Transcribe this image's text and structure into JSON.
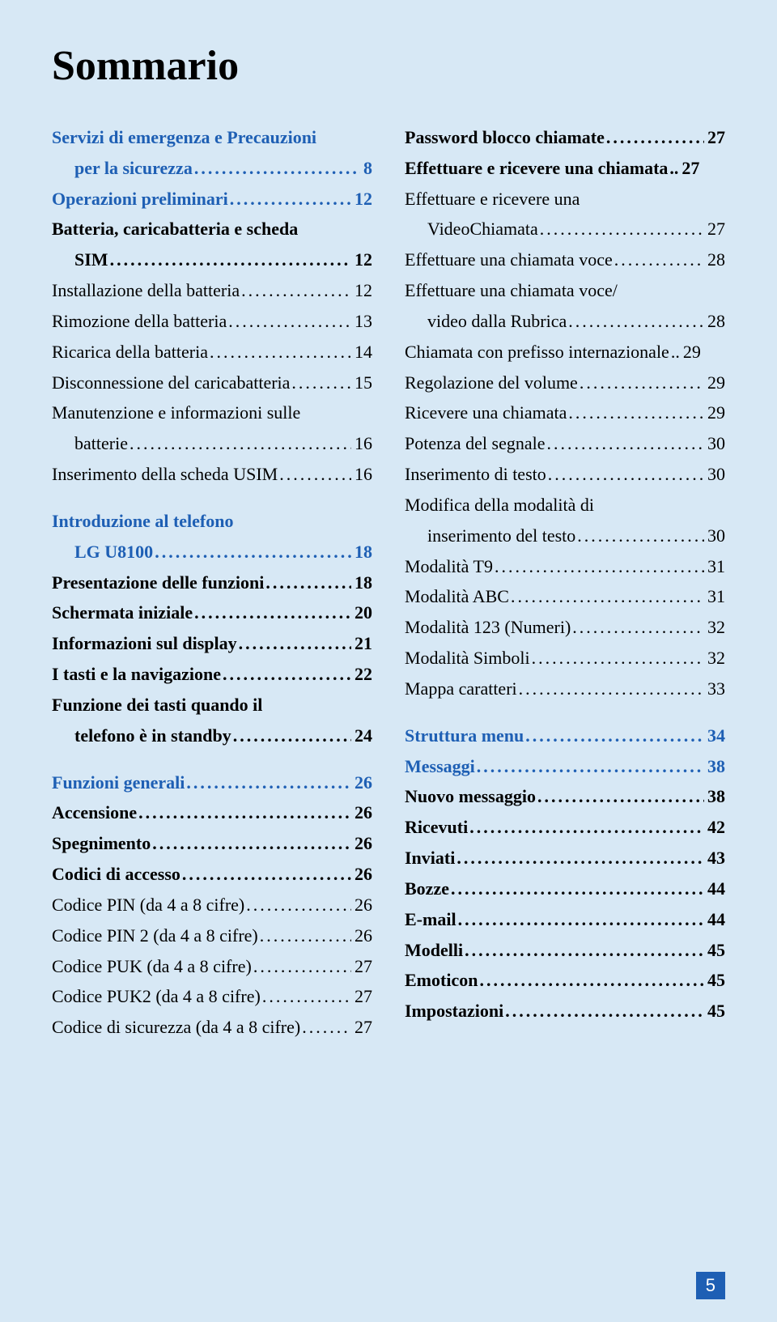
{
  "title": "Sommario",
  "page_number": "5",
  "colors": {
    "background": "#d7e8f5",
    "blue": "#1e5fb4",
    "black": "#000000",
    "white": "#ffffff"
  },
  "typography": {
    "title_fontsize": 52,
    "body_fontsize": 22,
    "font_family": "Georgia, Times New Roman, serif"
  },
  "left": [
    {
      "label": "Servizi di emergenza e Precauzioni",
      "wrap": "per la sicurezza",
      "page": "8",
      "style": "bold-blue"
    },
    {
      "label": "Operazioni preliminari",
      "page": "12",
      "style": "bold-blue"
    },
    {
      "label": "Batteria, caricabatteria e scheda",
      "wrap": "SIM",
      "page": "12",
      "style": "bold-black"
    },
    {
      "label": "Installazione della batteria",
      "page": "12",
      "style": "normal"
    },
    {
      "label": "Rimozione della batteria",
      "page": "13",
      "style": "normal"
    },
    {
      "label": "Ricarica della batteria",
      "page": "14",
      "style": "normal"
    },
    {
      "label": "Disconnessione del caricabatteria",
      "page": "15",
      "style": "normal"
    },
    {
      "label": "Manutenzione e informazioni sulle",
      "wrap": "batterie",
      "page": "16",
      "style": "normal"
    },
    {
      "label": "Inserimento della scheda USIM",
      "page": "16",
      "style": "normal"
    },
    {
      "spacer": true
    },
    {
      "label": "Introduzione al telefono",
      "wrap": "LG U8100",
      "page": "18",
      "style": "bold-blue"
    },
    {
      "label": "Presentazione delle funzioni",
      "page": "18",
      "style": "bold-black"
    },
    {
      "label": "Schermata iniziale",
      "page": "20",
      "style": "bold-black"
    },
    {
      "label": "Informazioni sul display",
      "page": "21",
      "style": "bold-black"
    },
    {
      "label": "I tasti e la navigazione",
      "page": "22",
      "style": "bold-black"
    },
    {
      "label": "Funzione dei tasti quando il",
      "wrap": "telefono è in standby",
      "page": "24",
      "style": "bold-black"
    },
    {
      "spacer": true
    },
    {
      "label": "Funzioni generali",
      "page": "26",
      "style": "bold-blue"
    },
    {
      "label": "Accensione",
      "page": "26",
      "style": "bold-black"
    },
    {
      "label": "Spegnimento",
      "page": "26",
      "style": "bold-black"
    },
    {
      "label": "Codici di accesso",
      "page": "26",
      "style": "bold-black"
    },
    {
      "label": "Codice PIN (da 4 a 8 cifre)",
      "page": "26",
      "style": "normal"
    },
    {
      "label": "Codice PIN 2 (da 4 a 8 cifre)",
      "page": "26",
      "style": "normal"
    },
    {
      "label": "Codice PUK (da 4 a 8 cifre)",
      "page": "27",
      "style": "normal"
    },
    {
      "label": "Codice PUK2 (da 4 a 8 cifre)",
      "page": "27",
      "style": "normal"
    },
    {
      "label": "Codice di sicurezza (da 4 a 8 cifre)",
      "page": "27",
      "style": "normal"
    }
  ],
  "right": [
    {
      "label": "Password blocco chiamate",
      "page": "27",
      "style": "bold-black"
    },
    {
      "label": "Effettuare e ricevere una chiamata",
      "page": "27",
      "style": "bold-black",
      "nodots": true
    },
    {
      "label": "Effettuare e ricevere una",
      "wrap": "VideoChiamata",
      "page": "27",
      "style": "normal"
    },
    {
      "label": "Effettuare una chiamata voce",
      "page": "28",
      "style": "normal"
    },
    {
      "label": "Effettuare una chiamata voce/",
      "wrap": "video dalla Rubrica",
      "page": "28",
      "style": "normal"
    },
    {
      "label": "Chiamata con prefisso internazionale",
      "page": "29",
      "style": "normal",
      "nodots": true
    },
    {
      "label": "Regolazione del volume",
      "page": "29",
      "style": "normal"
    },
    {
      "label": "Ricevere una chiamata",
      "page": "29",
      "style": "normal"
    },
    {
      "label": "Potenza del segnale",
      "page": "30",
      "style": "normal"
    },
    {
      "label": "Inserimento di testo",
      "page": "30",
      "style": "normal"
    },
    {
      "label": "Modifica della modalità di",
      "wrap": "inserimento del testo",
      "page": "30",
      "style": "normal"
    },
    {
      "label": "Modalità T9",
      "page": "31",
      "style": "normal"
    },
    {
      "label": "Modalità ABC",
      "page": "31",
      "style": "normal"
    },
    {
      "label": "Modalità 123 (Numeri)",
      "page": "32",
      "style": "normal"
    },
    {
      "label": "Modalità Simboli",
      "page": "32",
      "style": "normal"
    },
    {
      "label": "Mappa caratteri",
      "page": "33",
      "style": "normal"
    },
    {
      "spacer": true
    },
    {
      "label": "Struttura menu",
      "page": "34",
      "style": "bold-blue"
    },
    {
      "label": "Messaggi",
      "page": "38",
      "style": "bold-blue"
    },
    {
      "label": "Nuovo messaggio",
      "page": "38",
      "style": "bold-black"
    },
    {
      "label": "Ricevuti",
      "page": "42",
      "style": "bold-black"
    },
    {
      "label": "Inviati",
      "page": "43",
      "style": "bold-black"
    },
    {
      "label": "Bozze",
      "page": "44",
      "style": "bold-black"
    },
    {
      "label": "E-mail",
      "page": "44",
      "style": "bold-black"
    },
    {
      "label": "Modelli",
      "page": "45",
      "style": "bold-black"
    },
    {
      "label": "Emoticon",
      "page": "45",
      "style": "bold-black"
    },
    {
      "label": "Impostazioni",
      "page": "45",
      "style": "bold-black"
    }
  ]
}
